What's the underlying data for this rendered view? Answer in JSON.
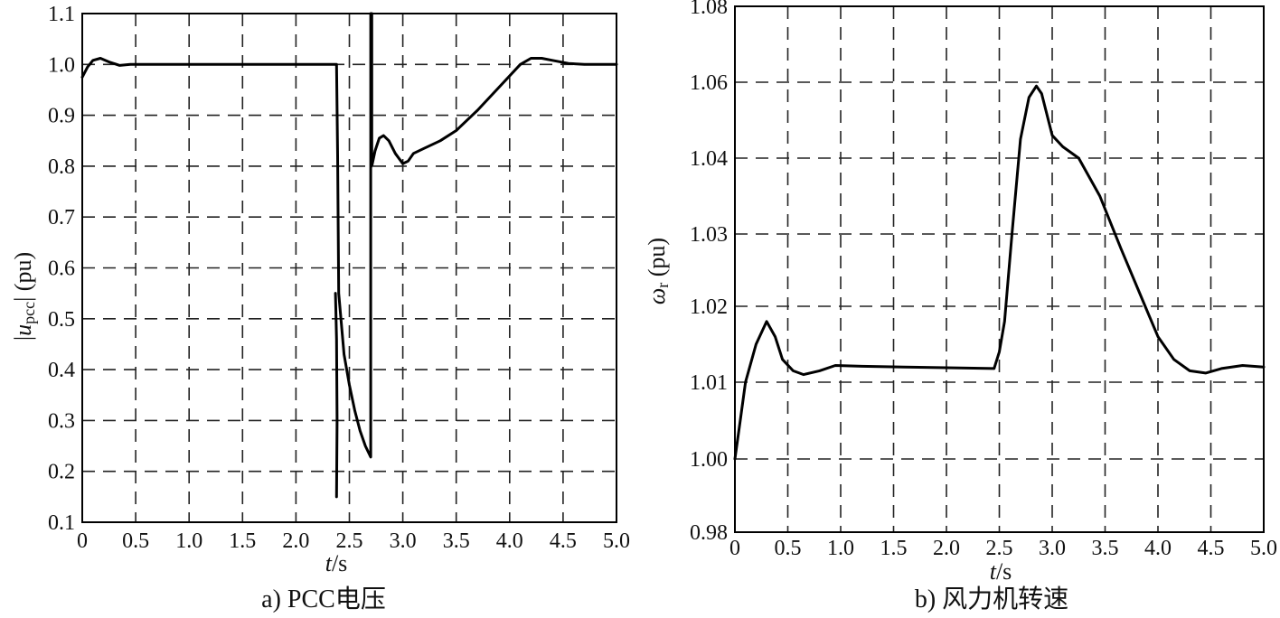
{
  "chart_data": [
    {
      "type": "line",
      "caption": "a) PCC电压",
      "xlabel_italic": "t",
      "xlabel_rest": "/s",
      "ylabel_pre": "|",
      "ylabel_italic": "u",
      "ylabel_sub": "pcc",
      "ylabel_post": "| (pu)",
      "xlim": [
        0,
        5.0
      ],
      "ylim": [
        0.1,
        1.1
      ],
      "xticks": [
        0,
        0.5,
        1.0,
        1.5,
        2.0,
        2.5,
        3.0,
        3.5,
        4.0,
        4.5,
        5.0
      ],
      "xtick_labels": [
        "0",
        "0.5",
        "1.0",
        "1.5",
        "2.0",
        "2.5",
        "3.0",
        "3.5",
        "4.0",
        "4.5",
        "5.0"
      ],
      "yticks": [
        0.1,
        0.2,
        0.3,
        0.4,
        0.5,
        0.6,
        0.7,
        0.8,
        0.9,
        1.0,
        1.1
      ],
      "ytick_labels": [
        "0.1",
        "0.2",
        "0.3",
        "0.4",
        "0.5",
        "0.6",
        "0.7",
        "0.8",
        "0.9",
        "1.0",
        "1.1"
      ],
      "grid": true,
      "series": [
        {
          "points": [
            [
              0.0,
              0.975
            ],
            [
              0.05,
              0.995
            ],
            [
              0.1,
              1.008
            ],
            [
              0.17,
              1.012
            ],
            [
              0.25,
              1.005
            ],
            [
              0.35,
              0.998
            ],
            [
              0.45,
              1.0
            ],
            [
              1.0,
              1.0
            ],
            [
              2.0,
              1.0
            ],
            [
              2.38,
              1.0
            ],
            [
              2.39,
              0.82
            ],
            [
              2.4,
              0.55
            ],
            [
              2.45,
              0.43
            ],
            [
              2.5,
              0.37
            ],
            [
              2.55,
              0.32
            ],
            [
              2.6,
              0.28
            ],
            [
              2.65,
              0.25
            ],
            [
              2.7,
              0.228
            ],
            [
              2.7,
              1.1
            ],
            [
              2.71,
              1.1
            ],
            [
              2.71,
              0.8
            ],
            [
              2.74,
              0.83
            ],
            [
              2.78,
              0.855
            ],
            [
              2.82,
              0.86
            ],
            [
              2.87,
              0.85
            ],
            [
              2.93,
              0.825
            ],
            [
              3.0,
              0.805
            ],
            [
              3.05,
              0.81
            ],
            [
              3.1,
              0.825
            ],
            [
              3.2,
              0.835
            ],
            [
              3.35,
              0.85
            ],
            [
              3.5,
              0.87
            ],
            [
              3.7,
              0.91
            ],
            [
              3.9,
              0.955
            ],
            [
              4.1,
              1.0
            ],
            [
              4.2,
              1.012
            ],
            [
              4.3,
              1.012
            ],
            [
              4.4,
              1.008
            ],
            [
              4.55,
              1.002
            ],
            [
              4.7,
              1.0
            ],
            [
              5.0,
              1.0
            ]
          ],
          "extra_segments": [
            [
              [
                2.37,
                0.55
              ],
              [
                2.38,
                0.46
              ],
              [
                2.385,
                0.3
              ],
              [
                2.38,
                0.15
              ]
            ]
          ]
        }
      ]
    },
    {
      "type": "line",
      "caption": "b) 风力机转速",
      "xlabel_italic": "t",
      "xlabel_rest": "/s",
      "ylabel_italic": "ω",
      "ylabel_sub": "r",
      "ylabel_post": " (pu)",
      "xlim": [
        0,
        5.0
      ],
      "yticks": [
        0.98,
        1.0,
        1.01,
        1.02,
        1.03,
        1.04,
        1.06,
        1.08
      ],
      "ytick_labels": [
        "0.98",
        "1.00",
        "1.01",
        "1.02",
        "1.03",
        "1.04",
        "1.06",
        "1.08"
      ],
      "xticks": [
        0,
        0.5,
        1.0,
        1.5,
        2.0,
        2.5,
        3.0,
        3.5,
        4.0,
        4.5,
        5.0
      ],
      "xtick_labels": [
        "0",
        "0.5",
        "1.0",
        "1.5",
        "2.0",
        "2.5",
        "3.0",
        "3.5",
        "4.0",
        "4.5",
        "5.0"
      ],
      "grid": true,
      "series": [
        {
          "points": [
            [
              0.0,
              1.0
            ],
            [
              0.05,
              1.005
            ],
            [
              0.1,
              1.01
            ],
            [
              0.2,
              1.015
            ],
            [
              0.3,
              1.018
            ],
            [
              0.38,
              1.016
            ],
            [
              0.45,
              1.013
            ],
            [
              0.55,
              1.0115
            ],
            [
              0.65,
              1.011
            ],
            [
              0.8,
              1.0115
            ],
            [
              0.95,
              1.0122
            ],
            [
              1.2,
              1.0121
            ],
            [
              1.6,
              1.012
            ],
            [
              2.0,
              1.0119
            ],
            [
              2.45,
              1.0118
            ],
            [
              2.5,
              1.014
            ],
            [
              2.55,
              1.018
            ],
            [
              2.62,
              1.03
            ],
            [
              2.7,
              1.045
            ],
            [
              2.78,
              1.056
            ],
            [
              2.85,
              1.059
            ],
            [
              2.9,
              1.057
            ],
            [
              3.0,
              1.046
            ],
            [
              3.1,
              1.043
            ],
            [
              3.25,
              1.04
            ],
            [
              3.45,
              1.035
            ],
            [
              3.65,
              1.028
            ],
            [
              3.85,
              1.021
            ],
            [
              4.0,
              1.016
            ],
            [
              4.15,
              1.013
            ],
            [
              4.3,
              1.0115
            ],
            [
              4.45,
              1.0112
            ],
            [
              4.6,
              1.0118
            ],
            [
              4.8,
              1.0122
            ],
            [
              5.0,
              1.012
            ]
          ]
        }
      ]
    }
  ]
}
